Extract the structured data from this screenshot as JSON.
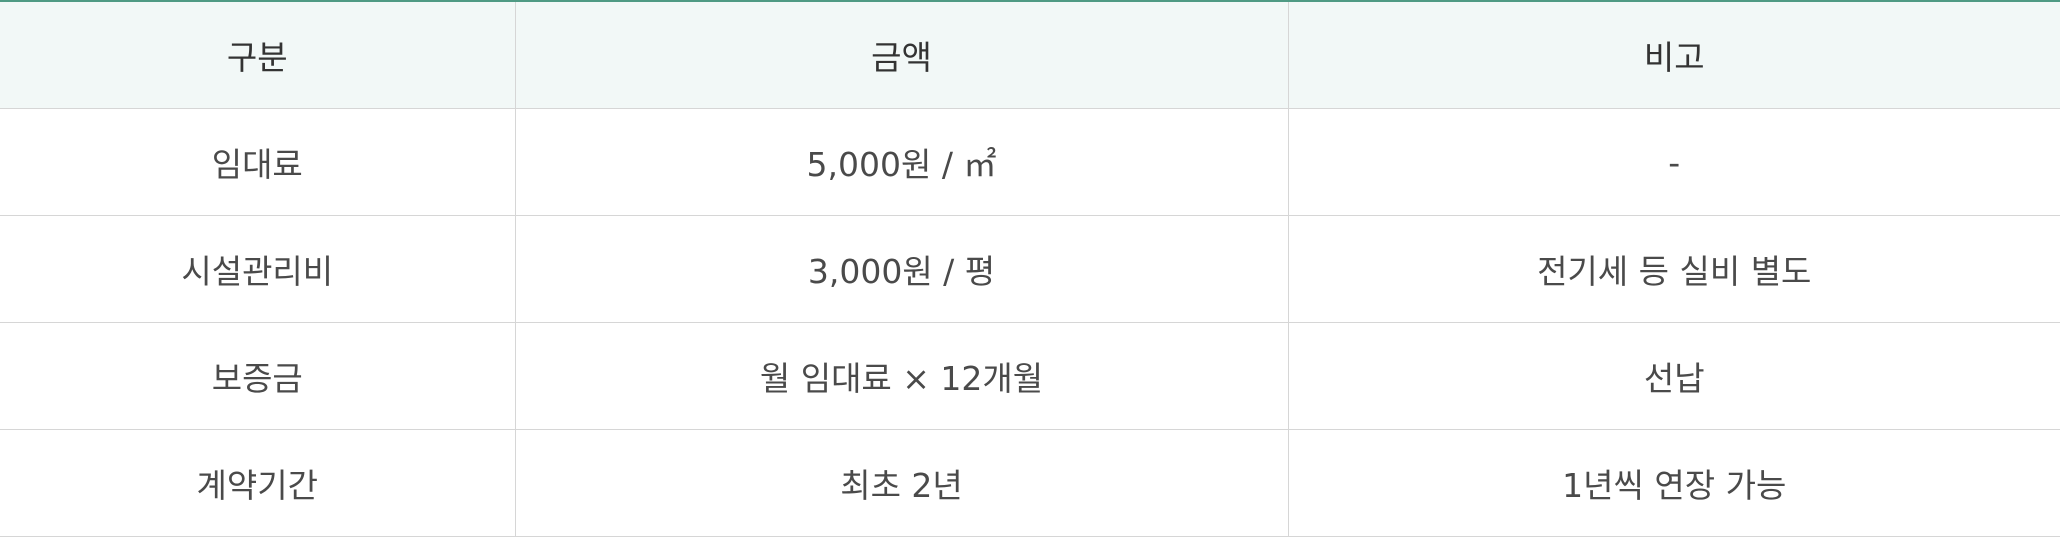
{
  "table": {
    "headers": [
      "구분",
      "금액",
      "비고"
    ],
    "rows": [
      [
        "임대료",
        "5,000원 / ㎡",
        "-"
      ],
      [
        "시설관리비",
        "3,000원 / 평",
        "전기세 등 실비 별도"
      ],
      [
        "보증금",
        "월 임대료 × 12개월",
        "선납"
      ],
      [
        "계약기간",
        "최초 2년",
        "1년씩 연장 가능"
      ]
    ]
  },
  "colors": {
    "header_background": "#f2f8f7",
    "top_border": "#4f9a84",
    "grid_line": "#d6d6d6",
    "text": "#4a4a4a"
  }
}
